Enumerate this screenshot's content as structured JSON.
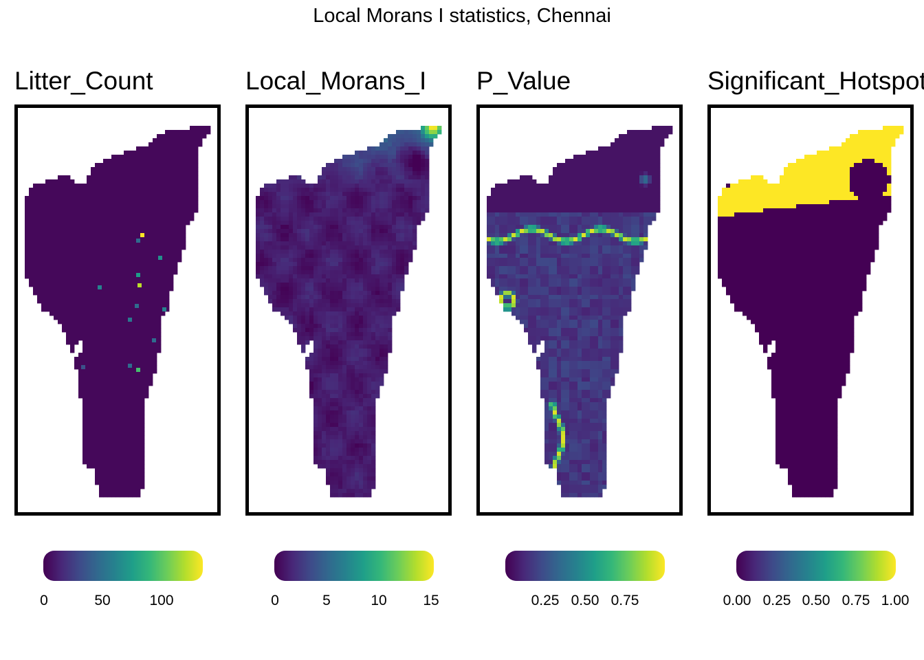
{
  "title": "Local Morans I statistics, Chennai",
  "colors": {
    "viridis": [
      "#440154",
      "#482878",
      "#3E4A89",
      "#31688E",
      "#26828E",
      "#1F9E89",
      "#35B779",
      "#6DCD59",
      "#B4DE2C",
      "#FDE725"
    ],
    "frame": "#000000",
    "background": "#ffffff"
  },
  "panels": [
    {
      "title": "Litter_Count",
      "legend": {
        "ticks": [
          "0",
          "50",
          "100"
        ],
        "tick_values": [
          0,
          50,
          100
        ],
        "range": [
          0,
          135
        ]
      }
    },
    {
      "title": "Local_Morans_I",
      "legend": {
        "ticks": [
          "0",
          "5",
          "10",
          "15"
        ],
        "tick_values": [
          0,
          5,
          10,
          15
        ],
        "range": [
          0,
          15.2
        ]
      }
    },
    {
      "title": "P_Value",
      "legend": {
        "ticks": [
          "0.25",
          "0.50",
          "0.75"
        ],
        "tick_values": [
          0.25,
          0.5,
          0.75
        ],
        "range": [
          0,
          1
        ]
      }
    },
    {
      "title": "Significant_Hotspot",
      "legend": {
        "ticks": [
          "0.00",
          "0.25",
          "0.50",
          "0.75",
          "1.00"
        ],
        "tick_values": [
          0,
          0.25,
          0.5,
          0.75,
          1
        ],
        "range": [
          0,
          1
        ]
      }
    }
  ],
  "chart_data": {
    "type": "heatmap",
    "title": "Local Morans I statistics, Chennai",
    "facets": [
      "Litter_Count",
      "Local_Morans_I",
      "P_Value",
      "Significant_Hotspot"
    ],
    "grid": false,
    "legend_position": "bottom",
    "color_scale": "viridis",
    "scales": {
      "Litter_Count": {
        "min": 0,
        "max": 135,
        "breaks": [
          0,
          50,
          100
        ]
      },
      "Local_Morans_I": {
        "min": 0,
        "max": 15.2,
        "breaks": [
          0,
          5,
          10,
          15
        ]
      },
      "P_Value": {
        "min": 0,
        "max": 1,
        "breaks": [
          0.25,
          0.5,
          0.75
        ]
      },
      "Significant_Hotspot": {
        "min": 0,
        "max": 1,
        "breaks": [
          0,
          0.25,
          0.5,
          0.75,
          1
        ]
      }
    }
  }
}
